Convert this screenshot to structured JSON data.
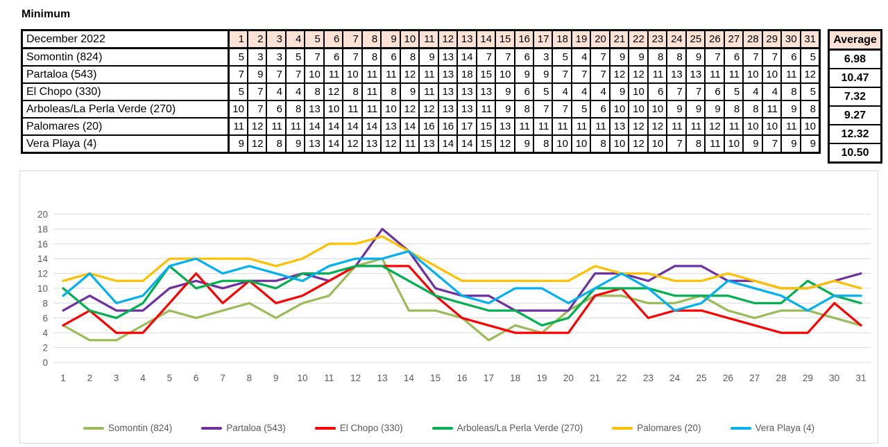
{
  "title": "Minimum",
  "table": {
    "header_label": "December 2022",
    "average_label": "Average",
    "days": [
      1,
      2,
      3,
      4,
      5,
      6,
      7,
      8,
      9,
      10,
      11,
      12,
      13,
      14,
      15,
      16,
      17,
      18,
      19,
      20,
      21,
      22,
      23,
      24,
      25,
      26,
      27,
      28,
      29,
      30,
      31
    ],
    "rows": [
      {
        "label": "Somontin (824)",
        "values": [
          5,
          3,
          3,
          5,
          7,
          6,
          7,
          8,
          6,
          8,
          9,
          13,
          14,
          7,
          7,
          6,
          3,
          5,
          4,
          7,
          9,
          9,
          8,
          8,
          9,
          7,
          6,
          7,
          7,
          6,
          5
        ],
        "average": "6.98"
      },
      {
        "label": "Partaloa (543)",
        "values": [
          7,
          9,
          7,
          7,
          10,
          11,
          10,
          11,
          11,
          12,
          11,
          13,
          18,
          15,
          10,
          9,
          9,
          7,
          7,
          7,
          12,
          12,
          11,
          13,
          13,
          11,
          11,
          10,
          10,
          11,
          12
        ],
        "average": "10.47"
      },
      {
        "label": "El Chopo (330)",
        "values": [
          5,
          7,
          4,
          4,
          8,
          12,
          8,
          11,
          8,
          9,
          11,
          13,
          13,
          13,
          9,
          6,
          5,
          4,
          4,
          4,
          9,
          10,
          6,
          7,
          7,
          6,
          5,
          4,
          4,
          8,
          5
        ],
        "average": "7.32"
      },
      {
        "label": "Arboleas/La Perla Verde (270)",
        "values": [
          10,
          7,
          6,
          8,
          13,
          10,
          11,
          11,
          10,
          12,
          12,
          13,
          13,
          11,
          9,
          8,
          7,
          7,
          5,
          6,
          10,
          10,
          10,
          9,
          9,
          9,
          8,
          8,
          11,
          9,
          8
        ],
        "average": "9.27"
      },
      {
        "label": "Palomares (20)",
        "values": [
          11,
          12,
          11,
          11,
          14,
          14,
          14,
          14,
          13,
          14,
          16,
          16,
          17,
          15,
          13,
          11,
          11,
          11,
          11,
          11,
          13,
          12,
          12,
          11,
          11,
          12,
          11,
          10,
          10,
          11,
          10
        ],
        "average": "12.32"
      },
      {
        "label": "Vera Playa (4)",
        "values": [
          9,
          12,
          8,
          9,
          13,
          14,
          12,
          13,
          12,
          11,
          13,
          14,
          14,
          15,
          12,
          9,
          8,
          10,
          10,
          8,
          10,
          12,
          10,
          7,
          8,
          11,
          10,
          9,
          7,
          9,
          9
        ],
        "average": "10.50"
      }
    ]
  },
  "chart_data": {
    "type": "line",
    "x": [
      1,
      2,
      3,
      4,
      5,
      6,
      7,
      8,
      9,
      10,
      11,
      12,
      13,
      14,
      15,
      16,
      17,
      18,
      19,
      20,
      21,
      22,
      23,
      24,
      25,
      26,
      27,
      28,
      29,
      30,
      31
    ],
    "series": [
      {
        "name": "Somontin (824)",
        "color": "#9BBB59",
        "values": [
          5,
          3,
          3,
          5,
          7,
          6,
          7,
          8,
          6,
          8,
          9,
          13,
          14,
          7,
          7,
          6,
          3,
          5,
          4,
          7,
          9,
          9,
          8,
          8,
          9,
          7,
          6,
          7,
          7,
          6,
          5
        ]
      },
      {
        "name": "Partaloa (543)",
        "color": "#7030A0",
        "values": [
          7,
          9,
          7,
          7,
          10,
          11,
          10,
          11,
          11,
          12,
          11,
          13,
          18,
          15,
          10,
          9,
          9,
          7,
          7,
          7,
          12,
          12,
          11,
          13,
          13,
          11,
          11,
          10,
          10,
          11,
          12
        ]
      },
      {
        "name": "El Chopo (330)",
        "color": "#FF0000",
        "values": [
          5,
          7,
          4,
          4,
          8,
          12,
          8,
          11,
          8,
          9,
          11,
          13,
          13,
          13,
          9,
          6,
          5,
          4,
          4,
          4,
          9,
          10,
          6,
          7,
          7,
          6,
          5,
          4,
          4,
          8,
          5
        ]
      },
      {
        "name": "Arboleas/La Perla Verde (270)",
        "color": "#00B050",
        "values": [
          10,
          7,
          6,
          8,
          13,
          10,
          11,
          11,
          10,
          12,
          12,
          13,
          13,
          11,
          9,
          8,
          7,
          7,
          5,
          6,
          10,
          10,
          10,
          9,
          9,
          9,
          8,
          8,
          11,
          9,
          8
        ]
      },
      {
        "name": "Palomares (20)",
        "color": "#FFC000",
        "values": [
          11,
          12,
          11,
          11,
          14,
          14,
          14,
          14,
          13,
          14,
          16,
          16,
          17,
          15,
          13,
          11,
          11,
          11,
          11,
          11,
          13,
          12,
          12,
          11,
          11,
          12,
          11,
          10,
          10,
          11,
          10
        ]
      },
      {
        "name": "Vera Playa (4)",
        "color": "#00B0F0",
        "values": [
          9,
          12,
          8,
          9,
          13,
          14,
          12,
          13,
          12,
          11,
          13,
          14,
          14,
          15,
          12,
          9,
          8,
          10,
          10,
          8,
          10,
          12,
          10,
          7,
          8,
          11,
          10,
          9,
          7,
          9,
          9
        ]
      }
    ],
    "ylim": [
      0,
      20
    ],
    "ytick_step": 2,
    "yticks": [
      0,
      2,
      4,
      6,
      8,
      10,
      12,
      14,
      16,
      18,
      20
    ],
    "grid": true,
    "legend_position": "bottom",
    "axis_text_color": "#595959",
    "gridline_color": "#D9D9D9"
  },
  "colors": {
    "header_fill": "#FBE2D5",
    "table_border": "#000000",
    "chart_border": "#D9D9D9"
  }
}
